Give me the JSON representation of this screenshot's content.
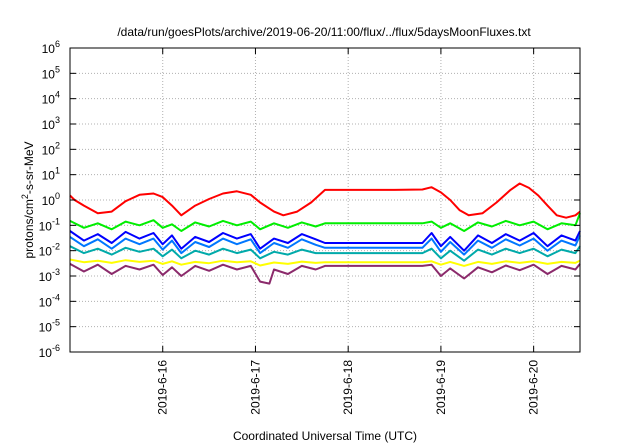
{
  "chart_data": {
    "type": "line",
    "title": "/data/run/goesPlots/archive/2019-06-20/11:00/flux/../flux/5daysMoonFluxes.txt",
    "xlabel": "Coordinated Universal Time (UTC)",
    "ylabel": "protons/cm²-s-sr-MeV",
    "ylabel_parts": {
      "pre": "protons/cm",
      "sup": "2",
      "post": "-s-sr-MeV"
    },
    "yscale": "log",
    "ylim": [
      1e-06,
      1000000.0
    ],
    "xlim": [
      15.0,
      20.5
    ],
    "x_unit": "day of 2019-06",
    "grid": true,
    "y_ticks": [
      {
        "base": "10",
        "exp": "6"
      },
      {
        "base": "10",
        "exp": "5"
      },
      {
        "base": "10",
        "exp": "4"
      },
      {
        "base": "10",
        "exp": "3"
      },
      {
        "base": "10",
        "exp": "2"
      },
      {
        "base": "10",
        "exp": "1"
      },
      {
        "base": "10",
        "exp": "0"
      },
      {
        "base": "10",
        "exp": "-1"
      },
      {
        "base": "10",
        "exp": "-2"
      },
      {
        "base": "10",
        "exp": "-3"
      },
      {
        "base": "10",
        "exp": "-4"
      },
      {
        "base": "10",
        "exp": "-5"
      },
      {
        "base": "10",
        "exp": "-6"
      }
    ],
    "x_ticks": [
      {
        "label": "2019-6-16",
        "x": 16
      },
      {
        "label": "2019-6-17",
        "x": 17
      },
      {
        "label": "2019-6-18",
        "x": 18
      },
      {
        "label": "2019-6-19",
        "x": 19
      },
      {
        "label": "2019-6-20",
        "x": 20
      }
    ],
    "series": [
      {
        "color": "#ff0000",
        "x": [
          15.0,
          15.05,
          15.15,
          15.3,
          15.45,
          15.6,
          15.75,
          15.9,
          16.0,
          16.1,
          16.2,
          16.35,
          16.5,
          16.65,
          16.8,
          16.95,
          17.05,
          17.2,
          17.3,
          17.45,
          17.6,
          17.75,
          17.9,
          18.0,
          18.5,
          18.8,
          18.9,
          19.0,
          19.1,
          19.2,
          19.3,
          19.45,
          19.6,
          19.75,
          19.85,
          19.95,
          20.05,
          20.15,
          20.25,
          20.35,
          20.45,
          20.5
        ],
        "y": [
          1.5,
          1.0,
          0.6,
          0.3,
          0.35,
          0.9,
          1.6,
          1.8,
          1.3,
          0.6,
          0.25,
          0.6,
          1.1,
          1.8,
          2.2,
          1.6,
          0.8,
          0.35,
          0.25,
          0.35,
          0.8,
          2.5,
          2.5,
          2.5,
          2.5,
          2.6,
          3.2,
          2.0,
          1.0,
          0.4,
          0.25,
          0.3,
          0.8,
          2.5,
          4.5,
          3.0,
          1.5,
          0.6,
          0.25,
          0.2,
          0.25,
          0.35
        ]
      },
      {
        "color": "#00ee00",
        "x": [
          15.0,
          15.15,
          15.3,
          15.45,
          15.6,
          15.75,
          15.9,
          16.0,
          16.1,
          16.2,
          16.35,
          16.5,
          16.65,
          16.8,
          16.95,
          17.05,
          17.2,
          17.35,
          17.5,
          17.65,
          17.75,
          18.8,
          18.9,
          19.0,
          19.1,
          19.25,
          19.4,
          19.55,
          19.7,
          19.85,
          20.0,
          20.15,
          20.3,
          20.45,
          20.5
        ],
        "y": [
          0.15,
          0.08,
          0.12,
          0.07,
          0.14,
          0.1,
          0.16,
          0.08,
          0.11,
          0.06,
          0.13,
          0.09,
          0.15,
          0.1,
          0.14,
          0.07,
          0.12,
          0.08,
          0.13,
          0.09,
          0.12,
          0.12,
          0.14,
          0.08,
          0.12,
          0.06,
          0.13,
          0.09,
          0.15,
          0.1,
          0.14,
          0.07,
          0.12,
          0.1,
          0.3
        ]
      },
      {
        "color": "#0000ff",
        "x": [
          15.0,
          15.15,
          15.3,
          15.45,
          15.6,
          15.75,
          15.9,
          16.0,
          16.1,
          16.2,
          16.35,
          16.5,
          16.65,
          16.8,
          16.95,
          17.05,
          17.2,
          17.35,
          17.5,
          17.65,
          17.75,
          18.8,
          18.9,
          19.0,
          19.1,
          19.25,
          19.4,
          19.55,
          19.7,
          19.85,
          20.0,
          20.15,
          20.3,
          20.45,
          20.5
        ],
        "y": [
          0.06,
          0.025,
          0.045,
          0.02,
          0.055,
          0.03,
          0.05,
          0.018,
          0.04,
          0.012,
          0.035,
          0.022,
          0.05,
          0.03,
          0.045,
          0.012,
          0.03,
          0.02,
          0.045,
          0.028,
          0.02,
          0.02,
          0.05,
          0.015,
          0.035,
          0.01,
          0.04,
          0.02,
          0.045,
          0.025,
          0.05,
          0.015,
          0.04,
          0.025,
          0.06
        ]
      },
      {
        "color": "#0077ff",
        "x": [
          15.0,
          15.15,
          15.3,
          15.45,
          15.6,
          15.75,
          15.9,
          16.0,
          16.1,
          16.2,
          16.35,
          16.5,
          16.65,
          16.8,
          16.95,
          17.05,
          17.2,
          17.35,
          17.5,
          17.65,
          17.75,
          18.8,
          18.9,
          19.0,
          19.1,
          19.25,
          19.4,
          19.55,
          19.7,
          19.85,
          20.0,
          20.15,
          20.3,
          20.45,
          20.5
        ],
        "y": [
          0.035,
          0.015,
          0.028,
          0.012,
          0.03,
          0.018,
          0.03,
          0.011,
          0.025,
          0.008,
          0.022,
          0.014,
          0.03,
          0.018,
          0.028,
          0.008,
          0.02,
          0.013,
          0.028,
          0.017,
          0.013,
          0.013,
          0.03,
          0.009,
          0.022,
          0.007,
          0.025,
          0.013,
          0.028,
          0.016,
          0.03,
          0.01,
          0.025,
          0.016,
          0.04
        ]
      },
      {
        "color": "#00aaaa",
        "x": [
          15.0,
          15.15,
          15.3,
          15.45,
          15.6,
          15.75,
          15.9,
          16.0,
          16.1,
          16.2,
          16.35,
          16.5,
          16.65,
          16.8,
          16.95,
          17.05,
          17.2,
          17.35,
          17.5,
          17.65,
          17.75,
          18.8,
          18.9,
          19.0,
          19.1,
          19.25,
          19.4,
          19.55,
          19.7,
          19.85,
          20.0,
          20.15,
          20.3,
          20.45,
          20.5
        ],
        "y": [
          0.015,
          0.008,
          0.012,
          0.007,
          0.013,
          0.009,
          0.012,
          0.006,
          0.011,
          0.005,
          0.01,
          0.007,
          0.012,
          0.008,
          0.011,
          0.005,
          0.009,
          0.007,
          0.011,
          0.008,
          0.008,
          0.008,
          0.012,
          0.005,
          0.01,
          0.004,
          0.011,
          0.007,
          0.012,
          0.008,
          0.012,
          0.006,
          0.011,
          0.008,
          0.015
        ]
      },
      {
        "color": "#ffff00",
        "x": [
          15.0,
          15.15,
          15.3,
          15.45,
          15.6,
          15.75,
          15.9,
          16.0,
          16.1,
          16.2,
          16.35,
          16.5,
          16.65,
          16.8,
          16.95,
          17.05,
          17.2,
          17.35,
          17.5,
          17.65,
          17.75,
          18.8,
          18.9,
          19.0,
          19.1,
          19.25,
          19.4,
          19.55,
          19.7,
          19.85,
          20.0,
          20.15,
          20.3,
          20.45,
          20.5
        ],
        "y": [
          0.0045,
          0.0035,
          0.004,
          0.0033,
          0.0042,
          0.0036,
          0.004,
          0.003,
          0.0038,
          0.0028,
          0.0036,
          0.0032,
          0.004,
          0.0035,
          0.0038,
          0.0026,
          0.0034,
          0.003,
          0.0037,
          0.0033,
          0.0035,
          0.0035,
          0.0038,
          0.0028,
          0.0036,
          0.0025,
          0.0036,
          0.003,
          0.0038,
          0.0033,
          0.0038,
          0.003,
          0.0036,
          0.0033,
          0.004
        ]
      },
      {
        "color": "#8b2a6b",
        "x": [
          15.0,
          15.15,
          15.3,
          15.45,
          15.6,
          15.75,
          15.9,
          16.0,
          16.1,
          16.2,
          16.35,
          16.5,
          16.65,
          16.8,
          16.95,
          17.05,
          17.15,
          17.2,
          17.35,
          17.5,
          17.65,
          17.75,
          18.8,
          18.9,
          19.0,
          19.1,
          19.25,
          19.4,
          19.55,
          19.7,
          19.85,
          20.0,
          20.15,
          20.3,
          20.45,
          20.5
        ],
        "y": [
          0.003,
          0.0015,
          0.0028,
          0.0012,
          0.0025,
          0.0018,
          0.0028,
          0.0011,
          0.0022,
          0.001,
          0.0025,
          0.0016,
          0.0028,
          0.0018,
          0.0025,
          0.0006,
          0.0005,
          0.0018,
          0.0012,
          0.0025,
          0.0018,
          0.0025,
          0.0025,
          0.0028,
          0.001,
          0.002,
          0.0008,
          0.0022,
          0.0014,
          0.0026,
          0.0017,
          0.0028,
          0.0012,
          0.0025,
          0.0018,
          0.003
        ]
      }
    ]
  }
}
